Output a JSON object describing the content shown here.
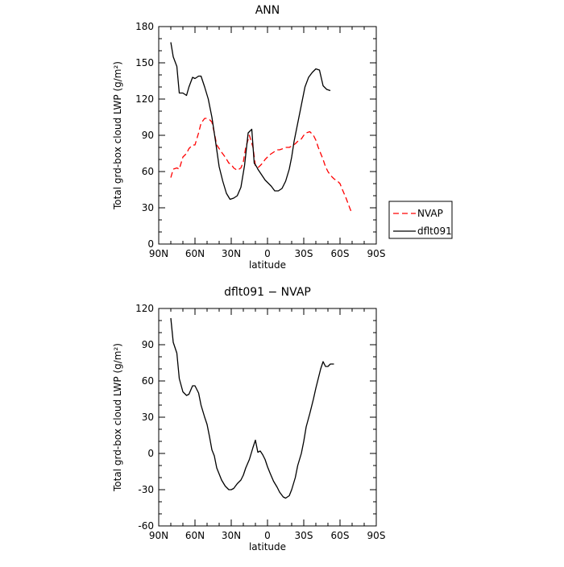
{
  "chart_data": [
    {
      "type": "line",
      "title": "ANN",
      "xlabel": "latitude",
      "ylabel": "Total grd-box cloud LWP (g/m²)",
      "xlim": [
        90,
        -90
      ],
      "ylim": [
        0,
        180
      ],
      "xticks": [
        90,
        60,
        30,
        0,
        -30,
        -60,
        -90
      ],
      "xtick_labels": [
        "90N",
        "60N",
        "30N",
        "0",
        "30S",
        "60S",
        "90S"
      ],
      "yticks": [
        0,
        30,
        60,
        90,
        120,
        150,
        180
      ],
      "ytick_labels": [
        "0",
        "30",
        "60",
        "90",
        "120",
        "150",
        "180"
      ],
      "legend": "right",
      "series": [
        {
          "name": "NVAP",
          "color": "#ff0000",
          "dash": "dashed",
          "x": [
            80,
            78,
            75,
            73,
            70,
            67,
            65,
            62,
            60,
            57,
            55,
            52,
            50,
            48,
            46,
            44,
            42,
            40,
            38,
            35,
            32,
            30,
            28,
            25,
            22,
            20,
            18,
            15,
            12,
            10,
            8,
            6,
            4,
            2,
            0,
            -2,
            -5,
            -8,
            -10,
            -13,
            -15,
            -18,
            -20,
            -23,
            -25,
            -28,
            -30,
            -32,
            -35,
            -38,
            -40,
            -42,
            -44,
            -46,
            -48,
            -50,
            -52,
            -55,
            -58,
            -60,
            -62,
            -65,
            -68,
            -70,
            -72,
            -75,
            -78
          ],
          "y": [
            55,
            62,
            63,
            62,
            72,
            75,
            79,
            82,
            82,
            92,
            100,
            104,
            104,
            103,
            101,
            92,
            82,
            79,
            76,
            72,
            67,
            66,
            63,
            61,
            63,
            68,
            80,
            90,
            80,
            65,
            63,
            65,
            67,
            70,
            72,
            74,
            76,
            78,
            78,
            79,
            80,
            80,
            81,
            83,
            85,
            87,
            90,
            92,
            93,
            90,
            86,
            80,
            75,
            70,
            64,
            60,
            57,
            54,
            52,
            50,
            45,
            38,
            30,
            25,
            24,
            22,
            20
          ],
          "y_visible_until_index": 63
        },
        {
          "name": "dflt091",
          "color": "#000000",
          "dash": "solid",
          "x": [
            80,
            78,
            75,
            73,
            70,
            67,
            65,
            62,
            60,
            57,
            55,
            52,
            49,
            46,
            43,
            40,
            37,
            34,
            31,
            28,
            25,
            22,
            19,
            16,
            13,
            11,
            9,
            8,
            6,
            4,
            2,
            0,
            -3,
            -6,
            -9,
            -12,
            -15,
            -18,
            -20,
            -22,
            -25,
            -28,
            -31,
            -34,
            -37,
            -40,
            -43,
            -46,
            -49,
            -52,
            -55,
            -58,
            -61,
            -64
          ],
          "y": [
            167,
            155,
            147,
            125,
            125,
            123,
            130,
            138,
            137,
            139,
            139,
            130,
            120,
            105,
            85,
            64,
            52,
            42,
            37,
            38,
            40,
            47,
            65,
            92,
            95,
            67,
            64,
            62,
            59,
            56,
            53,
            51,
            48,
            44,
            44,
            46,
            52,
            62,
            72,
            85,
            100,
            115,
            130,
            138,
            142,
            145,
            144,
            131,
            128,
            127,
            127,
            127,
            127,
            127
          ],
          "y_visible_until_index": 49
        }
      ]
    },
    {
      "type": "line",
      "title": "dflt091 − NVAP",
      "xlabel": "latitude",
      "ylabel": "Total grd-box cloud LWP (g/m²)",
      "xlim": [
        90,
        -90
      ],
      "ylim": [
        -60,
        120
      ],
      "xticks": [
        90,
        60,
        30,
        0,
        -30,
        -60,
        -90
      ],
      "xtick_labels": [
        "90N",
        "60N",
        "30N",
        "0",
        "30S",
        "60S",
        "90S"
      ],
      "yticks": [
        -60,
        -30,
        0,
        30,
        60,
        90,
        120
      ],
      "ytick_labels": [
        "-60",
        "-30",
        "0",
        "30",
        "60",
        "90",
        "120"
      ],
      "series": [
        {
          "color": "#000000",
          "dash": "solid",
          "x": [
            80,
            78,
            75,
            73,
            70,
            67,
            65,
            62,
            60,
            57,
            55,
            52,
            50,
            48,
            46,
            44,
            42,
            40,
            38,
            35,
            32,
            30,
            28,
            25,
            22,
            20,
            18,
            15,
            12,
            10,
            8,
            6,
            4,
            2,
            0,
            -2,
            -5,
            -8,
            -10,
            -13,
            -15,
            -18,
            -20,
            -23,
            -25,
            -28,
            -30,
            -32,
            -35,
            -38,
            -40,
            -42,
            -44,
            -46,
            -48,
            -50,
            -52,
            -55,
            -58,
            -60,
            -62,
            -64
          ],
          "y": [
            112,
            92,
            83,
            62,
            51,
            48,
            49,
            56,
            56,
            50,
            40,
            30,
            24,
            14,
            3,
            -2,
            -12,
            -17,
            -22,
            -27,
            -30,
            -30,
            -29,
            -25,
            -22,
            -18,
            -12,
            -5,
            5,
            11,
            1,
            2,
            -1,
            -5,
            -11,
            -16,
            -23,
            -28,
            -32,
            -36,
            -37,
            -35,
            -30,
            -20,
            -10,
            0,
            10,
            22,
            33,
            45,
            54,
            62,
            70,
            76,
            72,
            72,
            74,
            74,
            74,
            74,
            74,
            74
          ],
          "y_visible_until_index": 57
        }
      ]
    }
  ]
}
